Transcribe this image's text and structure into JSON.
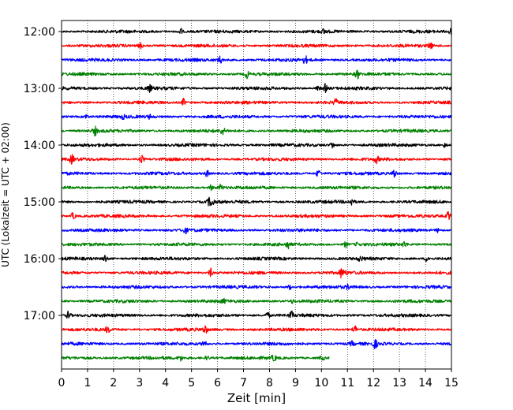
{
  "chart_data": {
    "type": "line",
    "subtype": "helicorder",
    "title": "",
    "xlabel": "Zeit  [min]",
    "ylabel": "UTC (Lokalzeit = UTC + 02:00)",
    "xlim": [
      0,
      15
    ],
    "x_ticks": [
      "0",
      "1",
      "2",
      "3",
      "4",
      "5",
      "6",
      "7",
      "8",
      "9",
      "10",
      "11",
      "12",
      "13",
      "14",
      "15"
    ],
    "y_tick_labels": [
      "12:00",
      "13:00",
      "14:00",
      "15:00",
      "16:00",
      "17:00"
    ],
    "grid": "vertical-dotted",
    "color_cycle": [
      "#000000",
      "#ff0000",
      "#0000ff",
      "#008000"
    ],
    "rows": [
      {
        "start": "12:00",
        "color": "#000000",
        "end_min": 15
      },
      {
        "start": "12:15",
        "color": "#ff0000",
        "end_min": 15
      },
      {
        "start": "12:30",
        "color": "#0000ff",
        "end_min": 15
      },
      {
        "start": "12:45",
        "color": "#008000",
        "end_min": 15
      },
      {
        "start": "13:00",
        "color": "#000000",
        "end_min": 15
      },
      {
        "start": "13:15",
        "color": "#ff0000",
        "end_min": 15
      },
      {
        "start": "13:30",
        "color": "#0000ff",
        "end_min": 15
      },
      {
        "start": "13:45",
        "color": "#008000",
        "end_min": 15
      },
      {
        "start": "14:00",
        "color": "#000000",
        "end_min": 15
      },
      {
        "start": "14:15",
        "color": "#ff0000",
        "end_min": 15
      },
      {
        "start": "14:30",
        "color": "#0000ff",
        "end_min": 15
      },
      {
        "start": "14:45",
        "color": "#008000",
        "end_min": 15
      },
      {
        "start": "15:00",
        "color": "#000000",
        "end_min": 15
      },
      {
        "start": "15:15",
        "color": "#ff0000",
        "end_min": 15
      },
      {
        "start": "15:30",
        "color": "#0000ff",
        "end_min": 15
      },
      {
        "start": "15:45",
        "color": "#008000",
        "end_min": 15
      },
      {
        "start": "16:00",
        "color": "#000000",
        "end_min": 15
      },
      {
        "start": "16:15",
        "color": "#ff0000",
        "end_min": 15
      },
      {
        "start": "16:30",
        "color": "#0000ff",
        "end_min": 15
      },
      {
        "start": "16:45",
        "color": "#008000",
        "end_min": 15
      },
      {
        "start": "17:00",
        "color": "#000000",
        "end_min": 15
      },
      {
        "start": "17:15",
        "color": "#ff0000",
        "end_min": 15
      },
      {
        "start": "17:30",
        "color": "#0000ff",
        "end_min": 15
      },
      {
        "start": "17:45",
        "color": "#008000",
        "end_min": 10.3
      }
    ]
  }
}
